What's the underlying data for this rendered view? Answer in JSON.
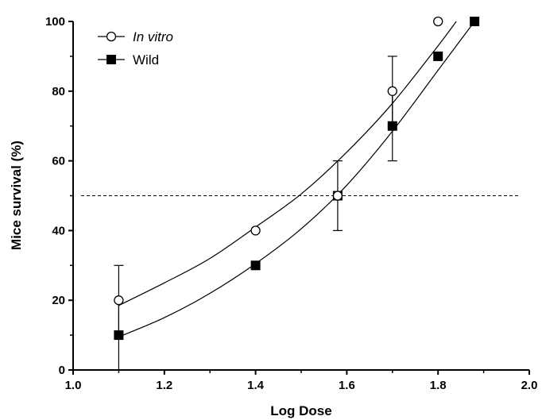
{
  "chart_data": {
    "type": "scatter",
    "xlabel": "Log Dose",
    "ylabel": "Mice survival (%)",
    "xlim": [
      1.0,
      2.0
    ],
    "ylim": [
      0,
      100
    ],
    "xticks": [
      "1.0",
      "1.2",
      "1.4",
      "1.6",
      "1.8",
      "2.0"
    ],
    "yticks": [
      "0",
      "20",
      "40",
      "60",
      "80",
      "100"
    ],
    "reference_line_y": 50,
    "legend_position": "top-left",
    "grid": false,
    "series": [
      {
        "name": "In vitro",
        "marker": "open-circle",
        "x": [
          1.1,
          1.4,
          1.58,
          1.7,
          1.8
        ],
        "y": [
          20,
          40,
          50,
          80,
          100
        ],
        "error": [
          10,
          0,
          10,
          10,
          0
        ],
        "fit_x": [
          1.1,
          1.2,
          1.3,
          1.4,
          1.5,
          1.6,
          1.7,
          1.8,
          1.84
        ],
        "fit_y": [
          18.5,
          25,
          32,
          41,
          50.5,
          62.5,
          76.5,
          93,
          100
        ]
      },
      {
        "name": "Wild",
        "marker": "filled-square",
        "x": [
          1.1,
          1.4,
          1.58,
          1.7,
          1.8,
          1.88
        ],
        "y": [
          10,
          30,
          50,
          70,
          90,
          100
        ],
        "error": [
          10,
          0,
          0,
          10,
          0,
          0
        ],
        "fit_x": [
          1.1,
          1.2,
          1.3,
          1.4,
          1.5,
          1.6,
          1.7,
          1.8,
          1.88
        ],
        "fit_y": [
          9.5,
          15,
          22,
          30.5,
          40.5,
          53,
          68.5,
          86,
          100
        ]
      }
    ]
  }
}
